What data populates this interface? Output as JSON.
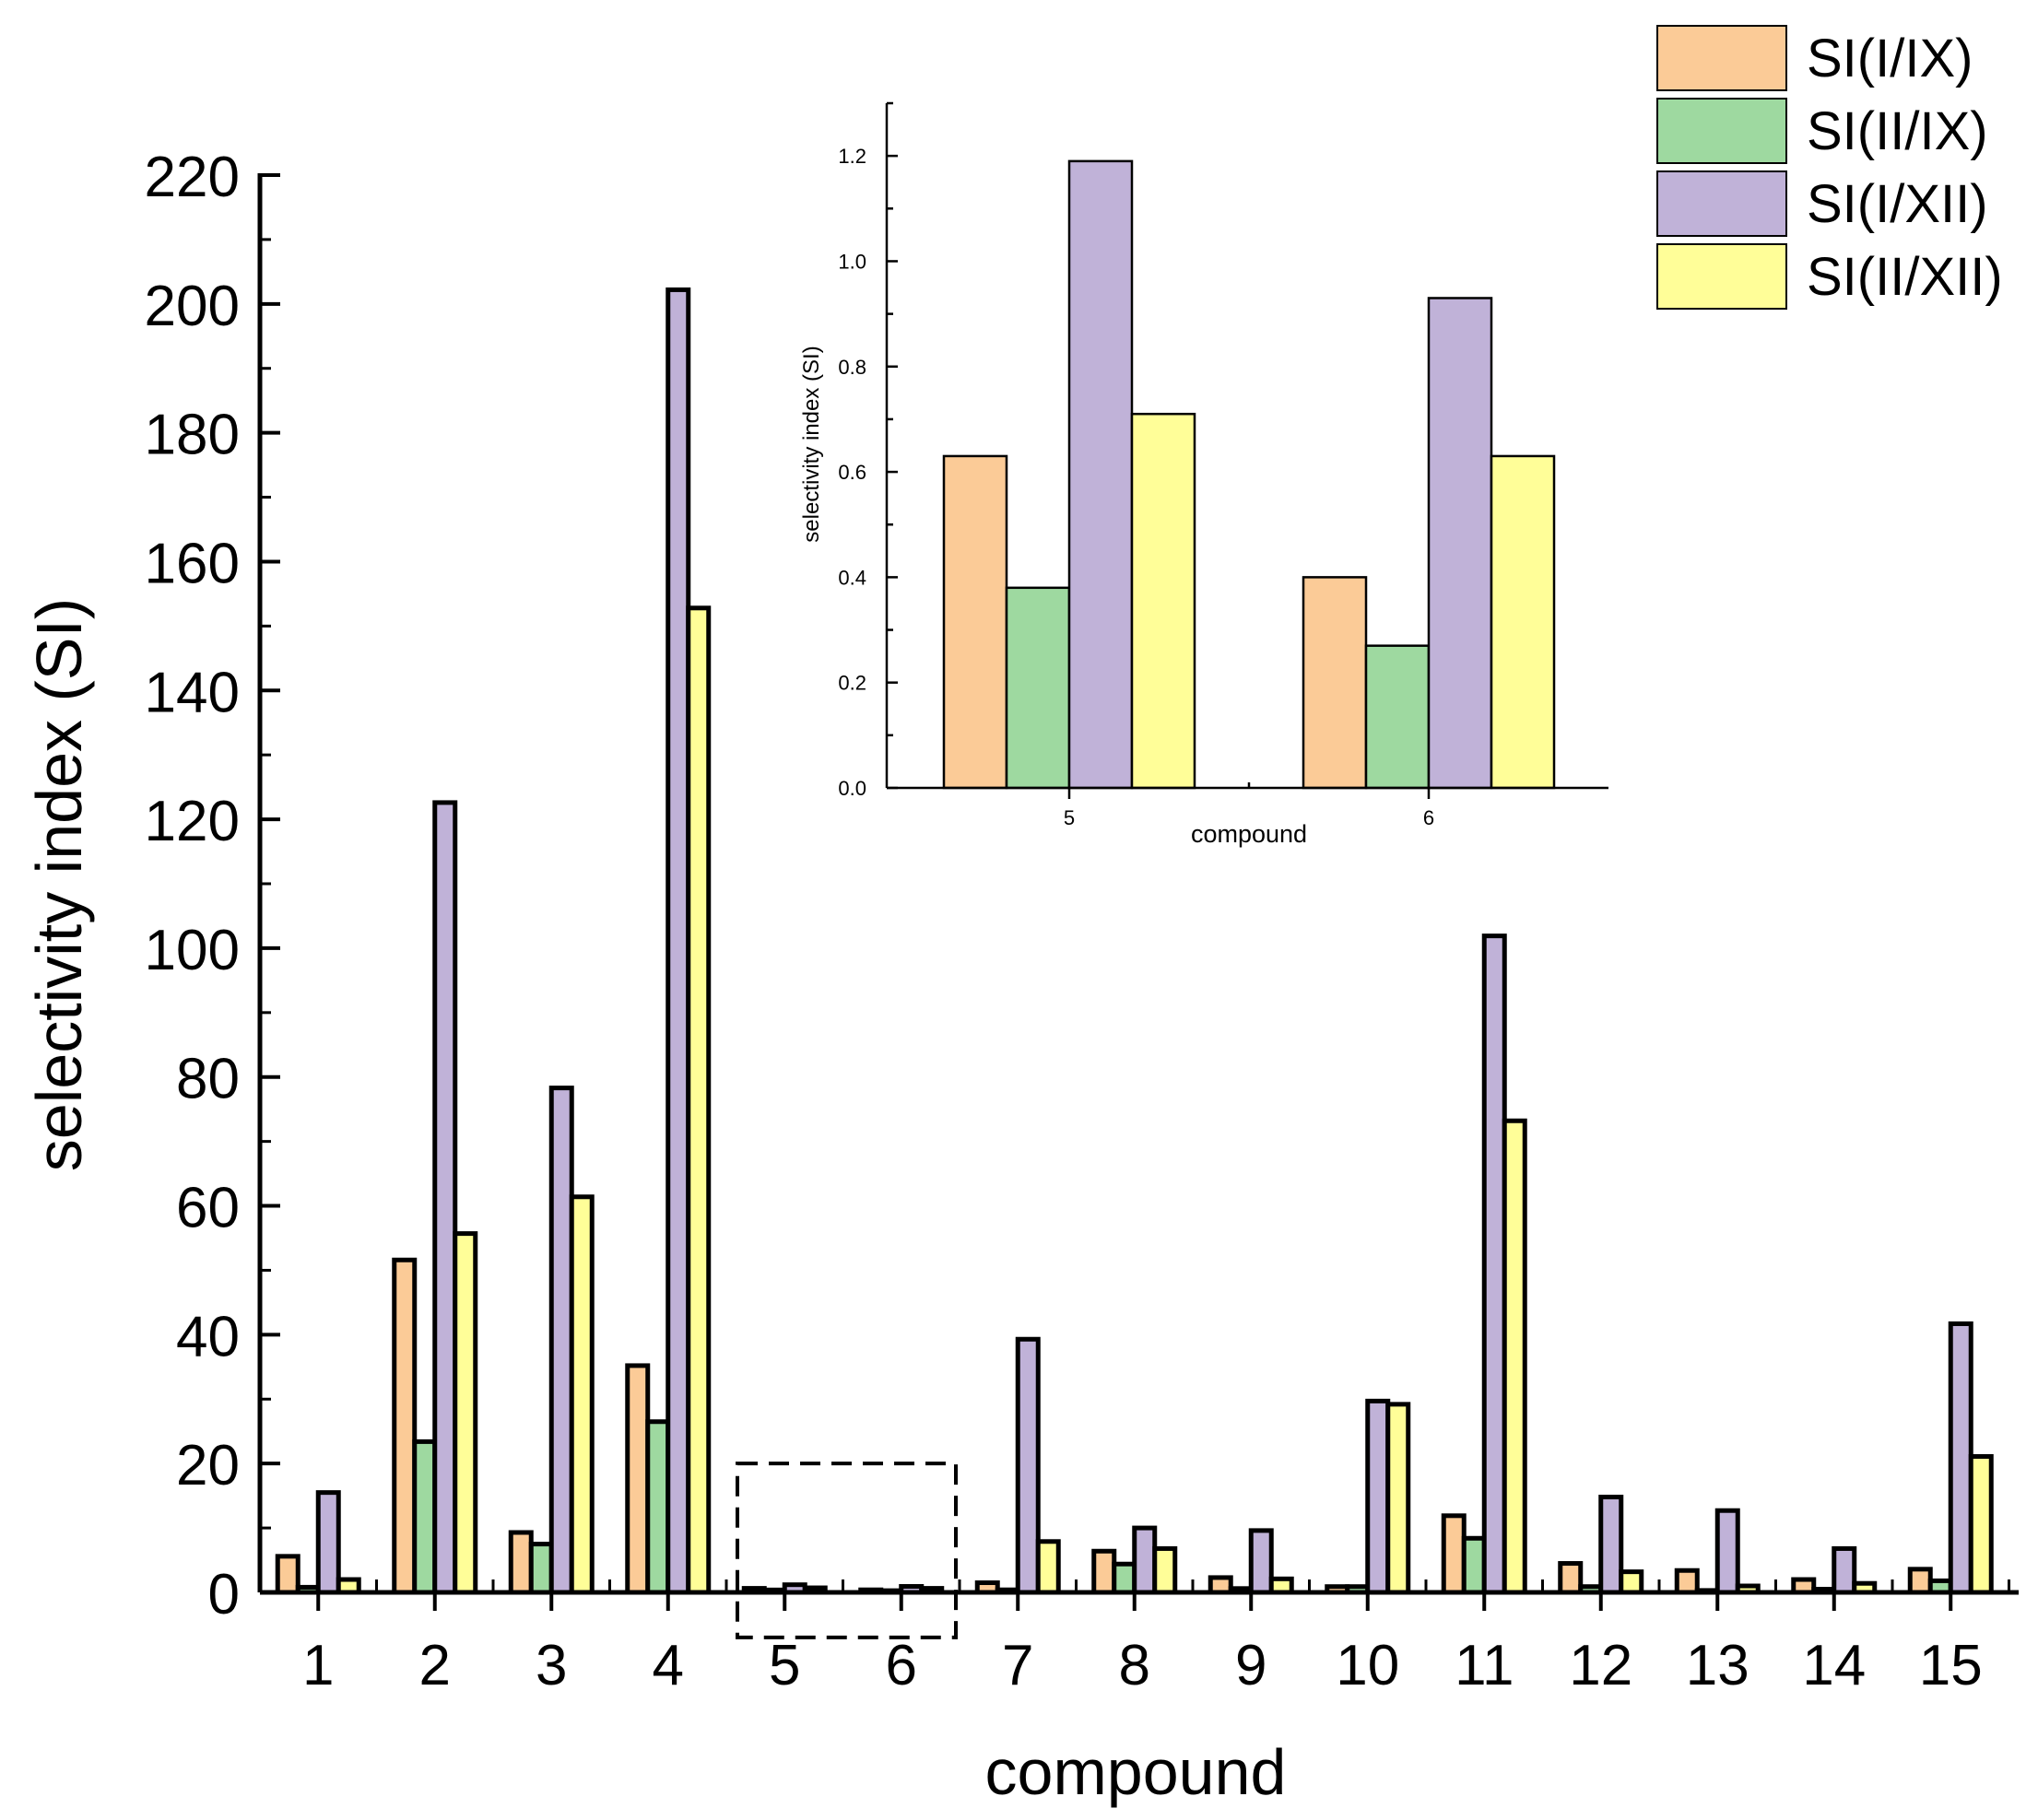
{
  "chart_data": [
    {
      "id": "main",
      "type": "bar",
      "title": "",
      "xlabel": "compound",
      "ylabel": "selectivity index (SI)",
      "ylim": [
        0,
        220
      ],
      "yticks": [
        0,
        20,
        40,
        60,
        80,
        100,
        120,
        140,
        160,
        180,
        200,
        220
      ],
      "grid": false,
      "legend_position": "top-right",
      "categories": [
        "1",
        "2",
        "3",
        "4",
        "5",
        "6",
        "7",
        "8",
        "9",
        "10",
        "11",
        "12",
        "13",
        "14",
        "15"
      ],
      "series": [
        {
          "name": "SI(I/IX)",
          "color": "#FBCB97",
          "values": [
            5.6,
            51.6,
            9.3,
            35.2,
            0.63,
            0.4,
            1.5,
            6.4,
            2.3,
            0.9,
            11.9,
            4.5,
            3.4,
            2.0,
            3.6
          ]
        },
        {
          "name": "SI(II/IX)",
          "color": "#9ED9A0",
          "values": [
            0.8,
            23.4,
            7.5,
            26.5,
            0.38,
            0.27,
            0.4,
            4.4,
            0.6,
            0.9,
            8.4,
            0.9,
            0.3,
            0.5,
            1.8
          ]
        },
        {
          "name": "SI(I/XII)",
          "color": "#C0B2D8",
          "values": [
            15.5,
            122.6,
            78.3,
            202.2,
            1.19,
            0.93,
            39.3,
            10.0,
            9.6,
            29.7,
            101.9,
            14.8,
            12.7,
            6.8,
            41.7
          ]
        },
        {
          "name": "SI(II/XII)",
          "color": "#FFFE98",
          "values": [
            2.0,
            55.7,
            61.4,
            152.8,
            0.71,
            0.63,
            7.9,
            6.8,
            2.1,
            29.2,
            73.2,
            3.2,
            1.0,
            1.4,
            21.1
          ]
        }
      ],
      "zoom_region": {
        "categories": [
          "5",
          "6"
        ],
        "y_range": [
          -7,
          20
        ]
      }
    },
    {
      "id": "inset",
      "type": "bar",
      "title": "",
      "xlabel": "compound",
      "ylabel": "selectivity index (SI)",
      "ylim": [
        0,
        1.3
      ],
      "yticks": [
        "0.0",
        "0.2",
        "0.4",
        "0.6",
        "0.8",
        "1.0",
        "1.2"
      ],
      "grid": false,
      "categories": [
        "5",
        "6"
      ],
      "series": [
        {
          "name": "SI(I/IX)",
          "color": "#FBCB97",
          "values": [
            0.63,
            0.4
          ]
        },
        {
          "name": "SI(II/IX)",
          "color": "#9ED9A0",
          "values": [
            0.38,
            0.27
          ]
        },
        {
          "name": "SI(I/XII)",
          "color": "#C0B2D8",
          "values": [
            1.19,
            0.93
          ]
        },
        {
          "name": "SI(II/XII)",
          "color": "#FFFE98",
          "values": [
            0.71,
            0.63
          ]
        }
      ]
    }
  ]
}
